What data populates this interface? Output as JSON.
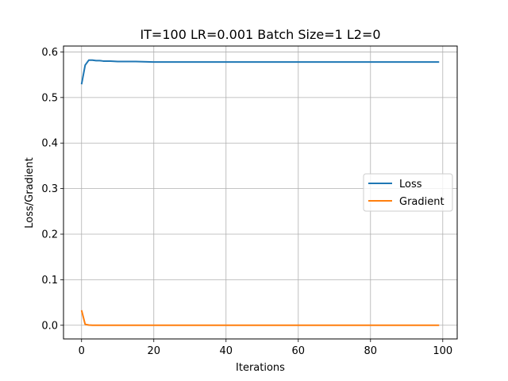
{
  "chart_data": {
    "type": "line",
    "title": "IT=100 LR=0.001 Batch Size=1 L2=0",
    "xlabel": "Iterations",
    "ylabel": "Loss/Gradient",
    "xlim": [
      -5,
      104
    ],
    "ylim": [
      -0.03,
      0.613
    ],
    "xticks": [
      0,
      20,
      40,
      60,
      80,
      100
    ],
    "xtick_labels": [
      "0",
      "20",
      "40",
      "60",
      "80",
      "100"
    ],
    "yticks": [
      0.0,
      0.1,
      0.2,
      0.3,
      0.4,
      0.5,
      0.6
    ],
    "ytick_labels": [
      "0.0",
      "0.1",
      "0.2",
      "0.3",
      "0.4",
      "0.5",
      "0.6"
    ],
    "grid": true,
    "legend_position": "center-right",
    "series": [
      {
        "name": "Loss",
        "color": "#1f77b4",
        "x": [
          0,
          1,
          2,
          3,
          4,
          5,
          6,
          8,
          10,
          12,
          15,
          20,
          25,
          30,
          40,
          50,
          60,
          70,
          80,
          90,
          99
        ],
        "y": [
          0.529,
          0.571,
          0.582,
          0.582,
          0.581,
          0.581,
          0.58,
          0.58,
          0.579,
          0.579,
          0.579,
          0.578,
          0.578,
          0.578,
          0.578,
          0.578,
          0.578,
          0.578,
          0.578,
          0.578,
          0.578
        ]
      },
      {
        "name": "Gradient",
        "color": "#ff7f0e",
        "x": [
          0,
          1,
          2,
          3,
          5,
          10,
          20,
          40,
          60,
          80,
          99
        ],
        "y": [
          0.033,
          0.002,
          0.0005,
          0.0,
          0.0,
          0.0,
          0.0,
          0.0,
          0.0,
          0.0,
          0.0
        ]
      }
    ]
  }
}
